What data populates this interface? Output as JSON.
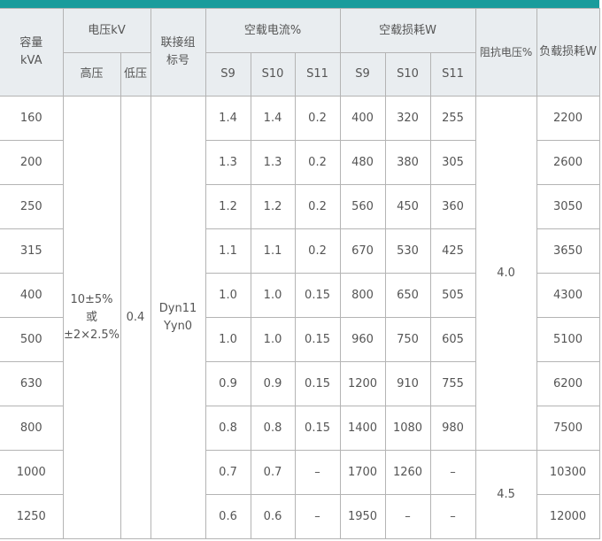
{
  "accent_color": "#1a9c9c",
  "header": {
    "capacity": "容量",
    "capacity_unit": "kVA",
    "voltage": "电压kV",
    "high_voltage": "高压",
    "low_voltage": "低压",
    "connection_1": "联接组",
    "connection_2": "标号",
    "noload_current": "空载电流%",
    "noload_loss": "空载损耗W",
    "impedance": "阻抗电压%",
    "load_loss": "负载损耗W",
    "s9": "S9",
    "s10": "S10",
    "s11": "S11"
  },
  "merged": {
    "high_voltage_1": "10±5%",
    "high_voltage_2": "或",
    "high_voltage_3": "±2×2.5%",
    "low_voltage": "0.4",
    "connection_1": "Dyn11",
    "connection_2": "Yyn0",
    "impedance_a": "4.0",
    "impedance_b": "4.5"
  },
  "rows": [
    {
      "capacity": "160",
      "i9": "1.4",
      "i10": "1.4",
      "i11": "0.2",
      "p9": "400",
      "p10": "320",
      "p11": "255",
      "load": "2200"
    },
    {
      "capacity": "200",
      "i9": "1.3",
      "i10": "1.3",
      "i11": "0.2",
      "p9": "480",
      "p10": "380",
      "p11": "305",
      "load": "2600"
    },
    {
      "capacity": "250",
      "i9": "1.2",
      "i10": "1.2",
      "i11": "0.2",
      "p9": "560",
      "p10": "450",
      "p11": "360",
      "load": "3050"
    },
    {
      "capacity": "315",
      "i9": "1.1",
      "i10": "1.1",
      "i11": "0.2",
      "p9": "670",
      "p10": "530",
      "p11": "425",
      "load": "3650"
    },
    {
      "capacity": "400",
      "i9": "1.0",
      "i10": "1.0",
      "i11": "0.15",
      "p9": "800",
      "p10": "650",
      "p11": "505",
      "load": "4300"
    },
    {
      "capacity": "500",
      "i9": "1.0",
      "i10": "1.0",
      "i11": "0.15",
      "p9": "960",
      "p10": "750",
      "p11": "605",
      "load": "5100"
    },
    {
      "capacity": "630",
      "i9": "0.9",
      "i10": "0.9",
      "i11": "0.15",
      "p9": "1200",
      "p10": "910",
      "p11": "755",
      "load": "6200"
    },
    {
      "capacity": "800",
      "i9": "0.8",
      "i10": "0.8",
      "i11": "0.15",
      "p9": "1400",
      "p10": "1080",
      "p11": "980",
      "load": "7500"
    },
    {
      "capacity": "1000",
      "i9": "0.7",
      "i10": "0.7",
      "i11": "–",
      "p9": "1700",
      "p10": "1260",
      "p11": "–",
      "load": "10300"
    },
    {
      "capacity": "1250",
      "i9": "0.6",
      "i10": "0.6",
      "i11": "–",
      "p9": "1950",
      "p10": "–",
      "p11": "–",
      "load": "12000"
    }
  ]
}
